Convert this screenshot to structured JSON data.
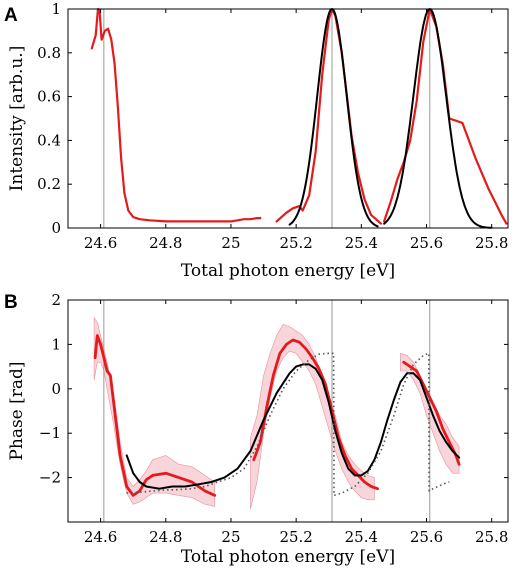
{
  "chart_data": [
    {
      "type": "line",
      "panel_label": "A",
      "xlabel": "Total photon energy [eV]",
      "ylabel": "Intensity [arb.u.]",
      "xlim": [
        24.5,
        25.85
      ],
      "ylim": [
        0,
        1
      ],
      "xticks": [
        "24.6",
        "24.8",
        "25",
        "25.2",
        "25.4",
        "25.6",
        "25.8"
      ],
      "yticks": [
        "0",
        "0.2",
        "0.4",
        "0.6",
        "0.8",
        "1"
      ],
      "vlines": [
        24.61,
        25.31,
        25.61
      ],
      "series": [
        {
          "color": "#e41a1c",
          "width": 2.2,
          "style": "solid",
          "x": [
            24.573,
            24.585,
            24.592,
            24.597,
            24.603,
            24.613,
            24.623,
            24.633,
            24.643,
            24.653,
            24.663,
            24.673,
            24.685,
            24.7,
            24.72,
            24.75,
            24.8,
            24.9,
            25.0,
            25.02,
            25.04,
            25.06,
            25.08,
            25.09
          ],
          "y": [
            0.82,
            0.88,
            1.0,
            0.99,
            0.86,
            0.9,
            0.91,
            0.86,
            0.75,
            0.55,
            0.32,
            0.16,
            0.08,
            0.05,
            0.04,
            0.035,
            0.03,
            0.03,
            0.03,
            0.035,
            0.04,
            0.04,
            0.045,
            0.045
          ]
        },
        {
          "color": "#e41a1c",
          "width": 2.2,
          "style": "solid",
          "x": [
            25.14,
            25.17,
            25.19,
            25.21,
            25.22,
            25.24,
            25.26,
            25.28,
            25.3,
            25.31,
            25.32,
            25.34,
            25.36,
            25.37,
            25.39,
            25.41,
            25.43,
            25.46
          ],
          "y": [
            0.03,
            0.07,
            0.09,
            0.1,
            0.08,
            0.15,
            0.35,
            0.7,
            0.95,
            1.0,
            0.97,
            0.8,
            0.55,
            0.42,
            0.25,
            0.13,
            0.06,
            0.02
          ]
        },
        {
          "color": "#e41a1c",
          "width": 2.2,
          "style": "solid",
          "x": [
            25.47,
            25.49,
            25.51,
            25.53,
            25.55,
            25.57,
            25.59,
            25.61,
            25.63,
            25.65,
            25.67,
            25.69,
            25.71,
            25.73,
            25.75,
            25.77,
            25.79,
            25.81,
            25.83,
            25.845
          ],
          "y": [
            0.03,
            0.12,
            0.22,
            0.3,
            0.4,
            0.58,
            0.85,
            1.0,
            0.92,
            0.75,
            0.5,
            0.49,
            0.48,
            0.4,
            0.32,
            0.25,
            0.18,
            0.12,
            0.06,
            0.02
          ]
        },
        {
          "color": "#000000",
          "width": 2.0,
          "style": "solid",
          "gaussian": true,
          "center": 25.31,
          "sigma": 0.045,
          "xrange": [
            25.18,
            25.45
          ]
        },
        {
          "color": "#000000",
          "width": 2.0,
          "style": "solid",
          "gaussian": true,
          "center": 25.61,
          "sigma": 0.05,
          "xrange": [
            25.47,
            25.8
          ]
        }
      ]
    },
    {
      "type": "line",
      "panel_label": "B",
      "xlabel": "Total photon energy [eV]",
      "ylabel": "Phase [rad]",
      "xlim": [
        24.5,
        25.85
      ],
      "ylim": [
        -3,
        2
      ],
      "xticks": [
        "24.6",
        "24.8",
        "25",
        "25.2",
        "25.4",
        "25.6",
        "25.8"
      ],
      "yticks": [
        "−2",
        "−1",
        "0",
        "1",
        "2"
      ],
      "vlines": [
        24.61,
        25.31,
        25.61
      ],
      "bands": [
        {
          "color": "#f2b3bb",
          "x": [
            24.58,
            24.59,
            24.6,
            24.61,
            24.62,
            24.64,
            24.66,
            24.68,
            24.7,
            24.72,
            24.74,
            24.76,
            24.8,
            24.84,
            24.88,
            24.92,
            24.95
          ],
          "y_upper": [
            1.6,
            1.5,
            1.2,
            0.9,
            0.6,
            -0.1,
            -1.2,
            -2.0,
            -2.2,
            -2.05,
            -1.85,
            -1.6,
            -1.5,
            -1.7,
            -1.75,
            -1.95,
            -2.1
          ],
          "y_lower": [
            0.2,
            0.6,
            0.6,
            0.4,
            0.0,
            -0.8,
            -1.7,
            -2.35,
            -2.6,
            -2.55,
            -2.45,
            -2.35,
            -2.35,
            -2.4,
            -2.45,
            -2.6,
            -2.65
          ]
        },
        {
          "color": "#f2b3bb",
          "x": [
            25.06,
            25.08,
            25.1,
            25.12,
            25.14,
            25.16,
            25.18,
            25.2,
            25.22,
            25.24,
            25.26,
            25.28,
            25.3,
            25.32,
            25.34,
            25.36,
            25.38,
            25.4,
            25.42,
            25.44
          ],
          "y_upper": [
            -1.1,
            -0.6,
            0.3,
            0.8,
            1.2,
            1.45,
            1.4,
            1.3,
            1.2,
            1.0,
            0.7,
            0.3,
            -0.1,
            -0.6,
            -1.2,
            -1.5,
            -1.7,
            -1.85,
            -1.95,
            -2.0
          ],
          "y_lower": [
            -2.7,
            -2.1,
            -1.0,
            -0.2,
            0.4,
            0.7,
            0.85,
            0.8,
            0.6,
            0.4,
            0.1,
            -0.4,
            -0.9,
            -1.4,
            -1.8,
            -2.1,
            -2.3,
            -2.45,
            -2.5,
            -2.5
          ]
        },
        {
          "color": "#f2b3bb",
          "x": [
            25.52,
            25.54,
            25.56,
            25.58,
            25.6,
            25.62,
            25.64,
            25.66,
            25.68,
            25.7
          ],
          "y_upper": [
            0.8,
            0.75,
            0.6,
            0.3,
            0.0,
            -0.3,
            -0.6,
            -0.8,
            -1.1,
            -1.3
          ],
          "y_lower": [
            0.4,
            0.4,
            0.2,
            -0.1,
            -0.6,
            -1.0,
            -1.4,
            -1.7,
            -1.9,
            -1.9
          ]
        }
      ],
      "series": [
        {
          "color": "#e41a1c",
          "width": 2.8,
          "style": "solid",
          "x": [
            24.583,
            24.59,
            24.6,
            24.61,
            24.62,
            24.63,
            24.64,
            24.66,
            24.68,
            24.7,
            24.72,
            24.74,
            24.76,
            24.8,
            24.84,
            24.88,
            24.92,
            24.95
          ],
          "y": [
            0.7,
            1.2,
            1.0,
            0.7,
            0.4,
            0.3,
            -0.3,
            -1.5,
            -2.2,
            -2.4,
            -2.3,
            -2.05,
            -1.95,
            -1.9,
            -2.0,
            -2.1,
            -2.3,
            -2.4
          ]
        },
        {
          "color": "#e41a1c",
          "width": 2.8,
          "style": "solid",
          "x": [
            25.07,
            25.09,
            25.11,
            25.13,
            25.15,
            25.17,
            25.19,
            25.21,
            25.23,
            25.25,
            25.27,
            25.29,
            25.31,
            25.33,
            25.35,
            25.37,
            25.39,
            25.41,
            25.43,
            25.45
          ],
          "y": [
            -1.6,
            -1.2,
            -0.4,
            0.3,
            0.8,
            1.0,
            1.1,
            1.05,
            0.9,
            0.7,
            0.45,
            0.1,
            -0.5,
            -1.1,
            -1.5,
            -1.8,
            -1.95,
            -2.1,
            -2.2,
            -2.25
          ]
        },
        {
          "color": "#e41a1c",
          "width": 2.8,
          "style": "solid",
          "x": [
            25.53,
            25.55,
            25.57,
            25.59,
            25.61,
            25.63,
            25.65,
            25.67,
            25.69,
            25.7
          ],
          "y": [
            0.6,
            0.5,
            0.4,
            0.1,
            -0.2,
            -0.5,
            -0.9,
            -1.2,
            -1.5,
            -1.7
          ]
        },
        {
          "color": "#000000",
          "width": 2.0,
          "style": "solid",
          "x": [
            24.68,
            24.7,
            24.72,
            24.74,
            24.78,
            24.82,
            24.86,
            24.9,
            24.94,
            24.98,
            25.02,
            25.06,
            25.1,
            25.14,
            25.18,
            25.2,
            25.22,
            25.24,
            25.26,
            25.28,
            25.3,
            25.32,
            25.34,
            25.36,
            25.38,
            25.4,
            25.42,
            25.44,
            25.46,
            25.48,
            25.5,
            25.52,
            25.54,
            25.56,
            25.58,
            25.6,
            25.62,
            25.64,
            25.66,
            25.68,
            25.7
          ],
          "y": [
            -1.5,
            -1.9,
            -2.1,
            -2.2,
            -2.25,
            -2.2,
            -2.2,
            -2.15,
            -2.1,
            -2.0,
            -1.8,
            -1.4,
            -0.7,
            -0.1,
            0.35,
            0.5,
            0.55,
            0.55,
            0.45,
            0.2,
            -0.3,
            -0.95,
            -1.45,
            -1.8,
            -1.95,
            -1.95,
            -1.85,
            -1.6,
            -1.2,
            -0.7,
            -0.25,
            0.15,
            0.35,
            0.35,
            0.2,
            -0.2,
            -0.6,
            -0.95,
            -1.2,
            -1.4,
            -1.55
          ]
        },
        {
          "color": "#555555",
          "width": 1.6,
          "style": "dotted",
          "x": [
            24.68,
            24.72,
            24.76,
            24.8,
            24.84,
            24.88,
            24.92,
            24.96,
            25.0,
            25.04,
            25.08,
            25.12,
            25.16,
            25.2,
            25.24,
            25.27,
            25.3,
            25.315,
            25.316,
            25.34,
            25.38,
            25.42,
            25.46,
            25.5,
            25.53,
            25.56,
            25.59,
            25.607,
            25.608,
            25.62,
            25.65,
            25.67
          ],
          "y": [
            -2.35,
            -2.33,
            -2.3,
            -2.28,
            -2.27,
            -2.25,
            -2.2,
            -2.1,
            -2.0,
            -1.8,
            -1.3,
            -0.6,
            0.0,
            0.4,
            0.65,
            0.78,
            0.8,
            0.8,
            -2.4,
            -2.35,
            -2.2,
            -1.9,
            -1.4,
            -0.6,
            0.1,
            0.55,
            0.75,
            0.8,
            -2.3,
            -2.25,
            -2.15,
            -2.1
          ]
        }
      ]
    }
  ]
}
